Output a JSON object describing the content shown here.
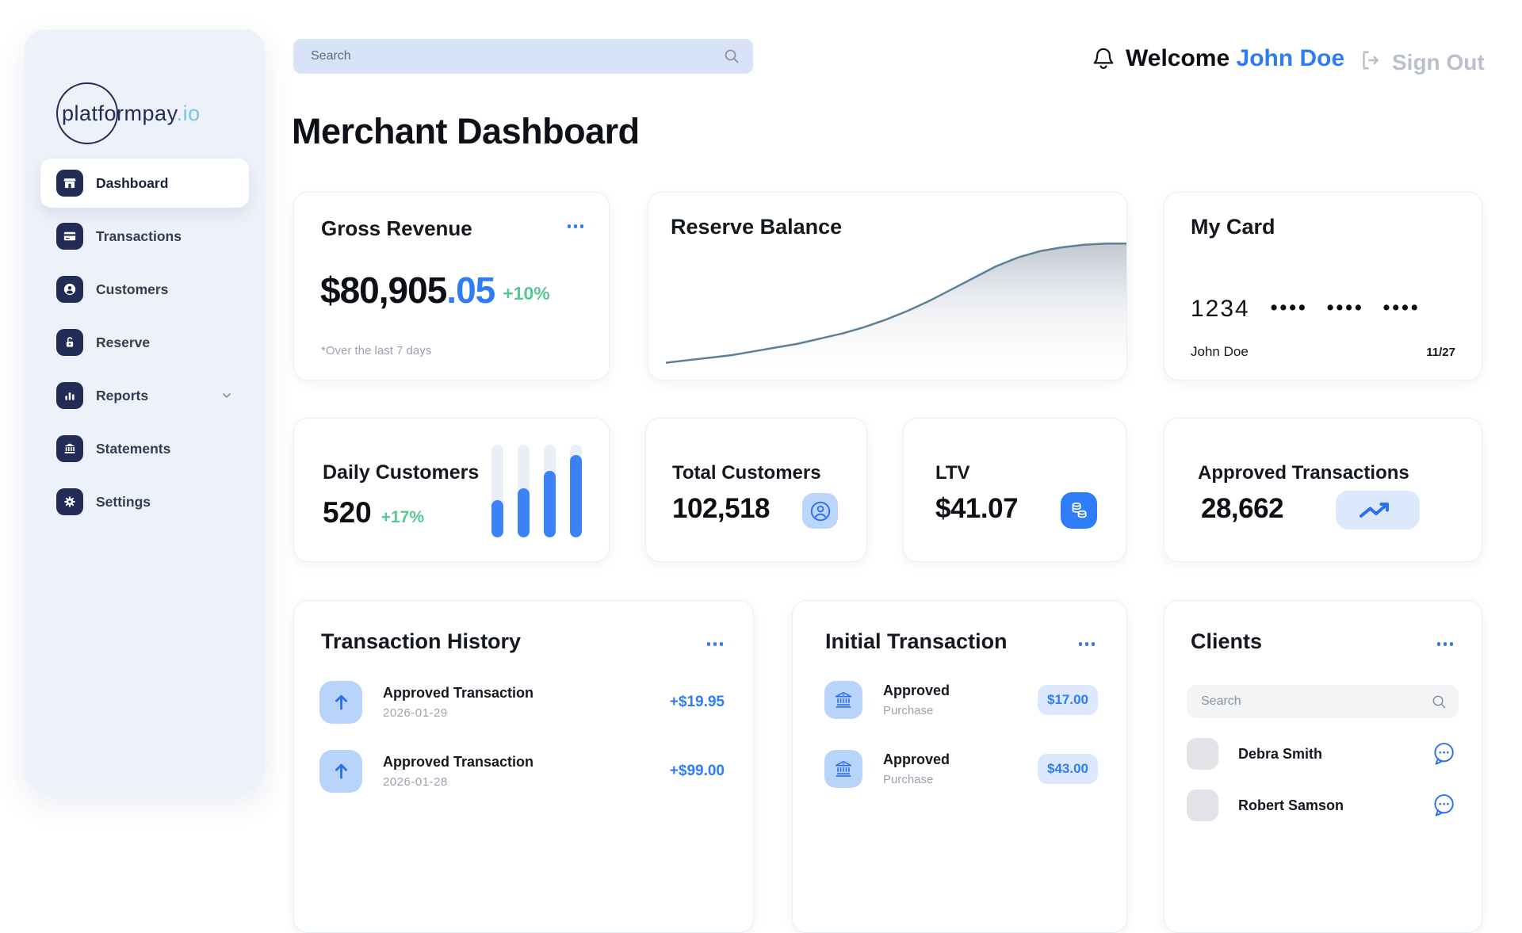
{
  "brand": {
    "logo_text": "platformpay",
    "logo_suffix": ".io"
  },
  "header": {
    "search_placeholder": "Search",
    "welcome_prefix": "Welcome",
    "user_name": "John Doe",
    "sign_out_label": "Sign Out"
  },
  "sidebar": {
    "items": [
      {
        "label": "Dashboard",
        "icon": "store-icon",
        "active": true
      },
      {
        "label": "Transactions",
        "icon": "credit-card-icon",
        "active": false
      },
      {
        "label": "Customers",
        "icon": "person-icon",
        "active": false
      },
      {
        "label": "Reserve",
        "icon": "padlock-icon",
        "active": false
      },
      {
        "label": "Reports",
        "icon": "bar-chart-icon",
        "active": false,
        "has_submenu": true
      },
      {
        "label": "Statements",
        "icon": "bank-icon",
        "active": false
      },
      {
        "label": "Settings",
        "icon": "gear-icon",
        "active": false
      }
    ]
  },
  "page": {
    "title_primary": "Merchant",
    "title_secondary": "Dashboard"
  },
  "cards": {
    "gross_revenue": {
      "title": "Gross Revenue",
      "currency": "$",
      "amount_main": " 80,905",
      "amount_decimals": ".05",
      "change": "+10%",
      "footnote": "*Over the last 7 days"
    },
    "reserve_balance": {
      "title": "Reserve Balance",
      "sparkline_pct": [
        4,
        6,
        8,
        10,
        13,
        16,
        19,
        23,
        27,
        32,
        38,
        45,
        53,
        62,
        71,
        80,
        87,
        92,
        95,
        97,
        98,
        98
      ]
    },
    "my_card": {
      "title": "My Card",
      "number_prefix": "1234",
      "number_masked": "•••• •••• ••••",
      "holder": "John Doe",
      "expiry": "11/27"
    },
    "daily_customers": {
      "title": "Daily Customers",
      "value": "520",
      "change": "+17%",
      "bars_pct": [
        40,
        53,
        72,
        89
      ]
    },
    "total_customers": {
      "title": "Total Customers",
      "value": "102,518"
    },
    "ltv": {
      "title": "LTV",
      "value": "$41.07"
    },
    "approved_transactions": {
      "title": "Approved Transactions",
      "value": "28,662"
    },
    "transaction_history": {
      "title": "Transaction History",
      "rows": [
        {
          "label": "Approved Transaction",
          "date": "2026-01-29",
          "amount": "+$19.95"
        },
        {
          "label": "Approved Transaction",
          "date": "2026-01-28",
          "amount": "+$99.00"
        }
      ]
    },
    "initial_transaction": {
      "title": "Initial Transaction",
      "rows": [
        {
          "label": "Approved",
          "sublabel": "Purchase",
          "amount": "$17.00"
        },
        {
          "label": "Approved",
          "sublabel": "Purchase",
          "amount": "$43.00"
        }
      ]
    },
    "clients": {
      "title": "Clients",
      "search_placeholder": "Search",
      "rows": [
        {
          "name": "Debra Smith"
        },
        {
          "name": "Robert Samson"
        }
      ]
    }
  },
  "colors": {
    "accent_blue": "#2f7cf6",
    "bar_blue": "#3b82f6",
    "navy": "#232c54",
    "green": "#57c793",
    "sidebar_bg": "#edf1f9",
    "spark_line": "#5d7f98"
  }
}
